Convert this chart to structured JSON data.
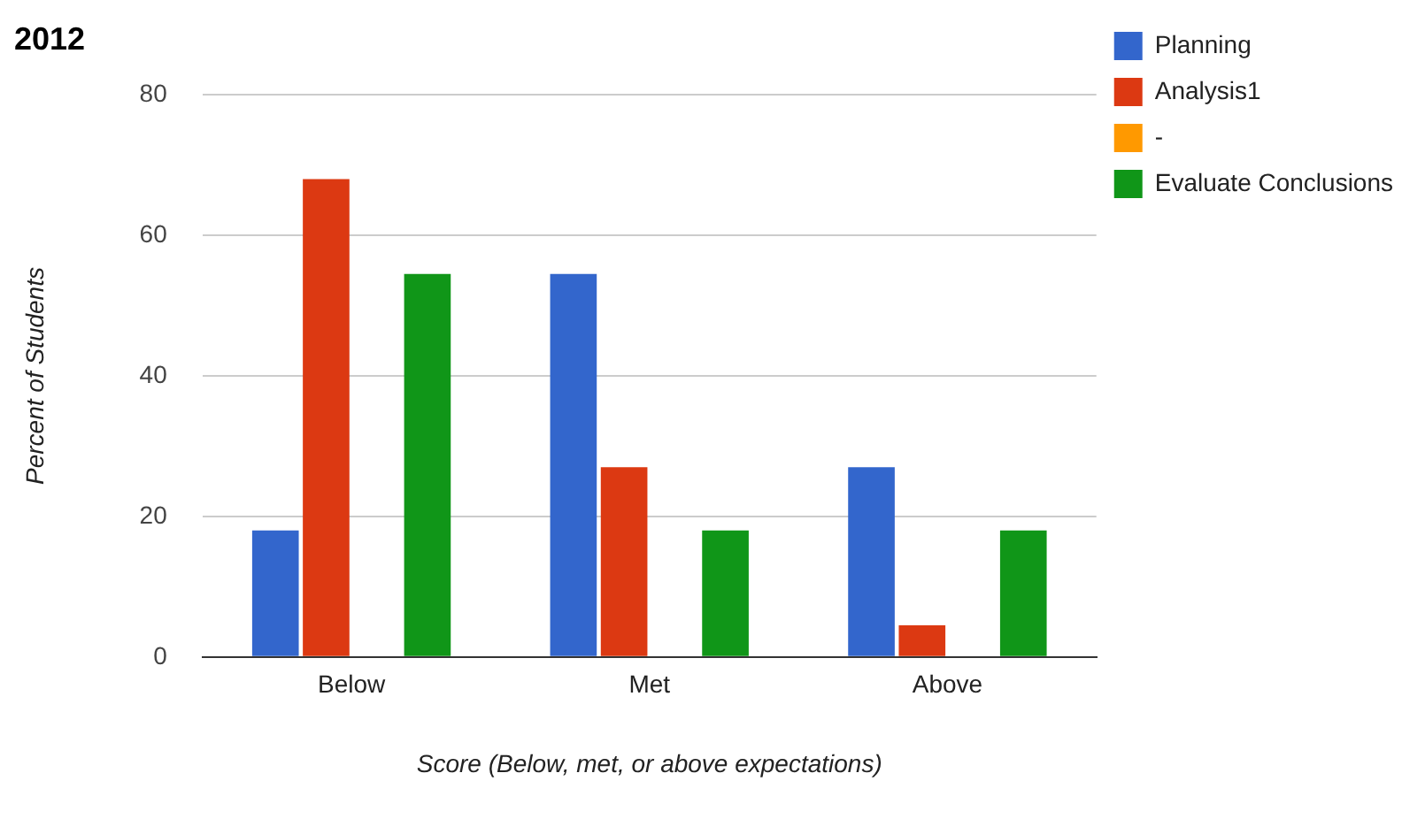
{
  "chart_data": {
    "type": "bar",
    "title": "2012",
    "xlabel": "Score (Below, met, or above expectations)",
    "ylabel": "Percent of Students",
    "categories": [
      "Below",
      "Met",
      "Above"
    ],
    "series": [
      {
        "name": "Planning",
        "color": "#3366cc",
        "values": [
          18,
          54.5,
          27
        ]
      },
      {
        "name": "Analysis1",
        "color": "#dc3912",
        "values": [
          68,
          27,
          4.5
        ]
      },
      {
        "name": "-",
        "color": "#ff9900",
        "values": [
          null,
          null,
          null
        ]
      },
      {
        "name": "Evaluate Conclusions",
        "color": "#109618",
        "values": [
          54.5,
          18,
          18
        ]
      }
    ],
    "ylim": [
      0,
      80
    ],
    "yticks": [
      0,
      20,
      40,
      60,
      80
    ],
    "grid": "y",
    "legend": "top right"
  }
}
